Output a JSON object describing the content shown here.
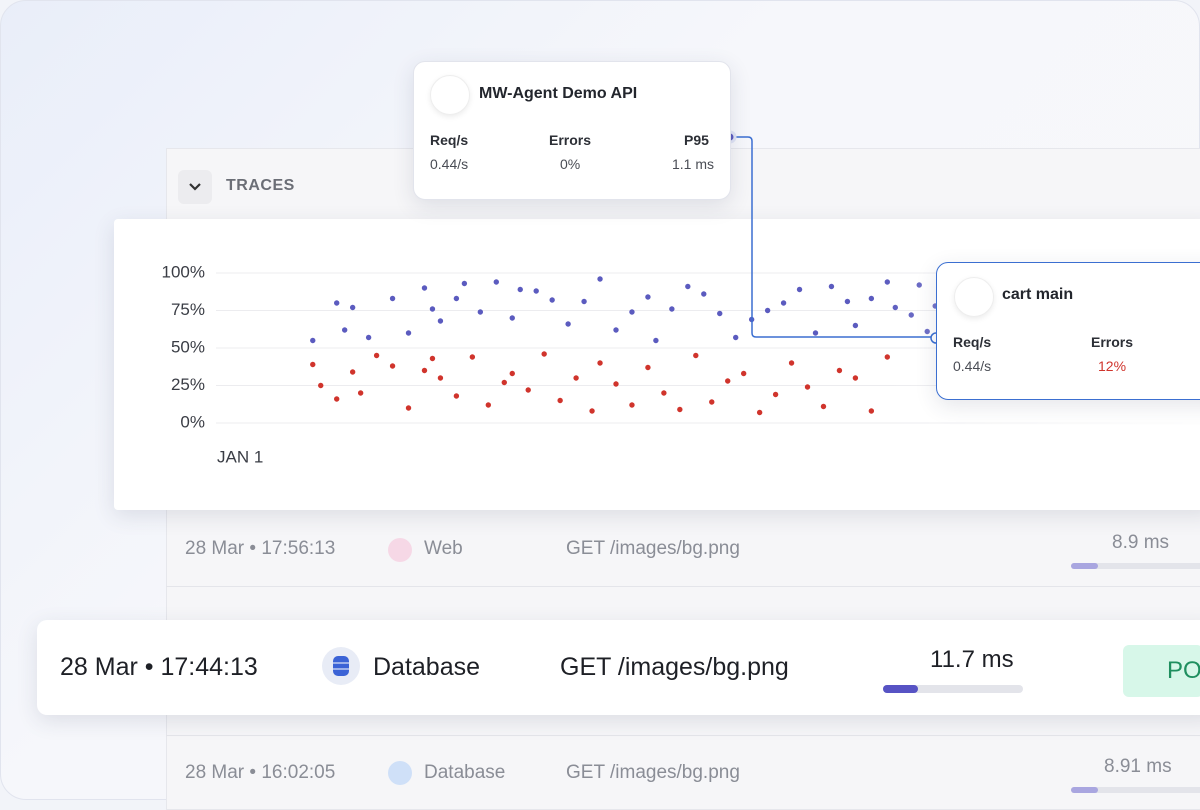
{
  "traces": {
    "title": "TRACES",
    "chart_data": {
      "type": "scatter",
      "xlim": [
        0,
        100
      ],
      "xticks": [
        {
          "value": 0,
          "label": "JAN 1"
        }
      ],
      "ylim": [
        0,
        100
      ],
      "yticks": [
        {
          "value": 0,
          "label": "0%"
        },
        {
          "value": 25,
          "label": "25%"
        },
        {
          "value": 50,
          "label": "50%"
        },
        {
          "value": 75,
          "label": "75%"
        },
        {
          "value": 100,
          "label": "100%"
        }
      ],
      "grid": true,
      "series": [
        {
          "color": "#5b5bbf",
          "x": [
            12,
            15,
            16,
            17,
            19,
            22,
            24,
            26,
            27,
            28,
            30,
            31,
            33,
            35,
            37,
            38,
            40,
            42,
            44,
            46,
            48,
            50,
            52,
            54,
            55,
            57,
            59,
            61,
            63,
            65,
            67,
            69,
            71,
            73,
            75,
            77,
            79,
            80,
            82,
            84,
            85,
            87,
            88,
            89,
            90
          ],
          "values": [
            55,
            80,
            62,
            77,
            57,
            83,
            60,
            90,
            76,
            68,
            83,
            93,
            74,
            94,
            70,
            89,
            88,
            82,
            66,
            81,
            96,
            62,
            74,
            84,
            55,
            76,
            91,
            86,
            73,
            57,
            69,
            75,
            80,
            89,
            60,
            91,
            81,
            65,
            83,
            94,
            77,
            72,
            92,
            61,
            78
          ]
        },
        {
          "color": "#d0342c",
          "x": [
            12,
            13,
            15,
            17,
            18,
            20,
            22,
            24,
            26,
            27,
            28,
            30,
            32,
            34,
            36,
            37,
            39,
            41,
            43,
            45,
            47,
            48,
            50,
            52,
            54,
            56,
            58,
            60,
            62,
            64,
            66,
            68,
            70,
            72,
            74,
            76,
            78,
            80,
            82,
            84
          ],
          "values": [
            39,
            25,
            16,
            34,
            20,
            45,
            38,
            10,
            35,
            43,
            30,
            18,
            44,
            12,
            27,
            33,
            22,
            46,
            15,
            30,
            8,
            40,
            26,
            12,
            37,
            20,
            9,
            45,
            14,
            28,
            33,
            7,
            19,
            40,
            24,
            11,
            35,
            30,
            8,
            44
          ]
        }
      ]
    },
    "rows": [
      {
        "time": "28 Mar • 17:56:13",
        "service": "Web",
        "request": "GET /images/bg.png",
        "duration": "8.9 ms"
      },
      {
        "time": "28 Mar • 16:02:05",
        "service": "Database",
        "request": "GET /images/bg.png",
        "duration": "8.91 ms"
      }
    ],
    "highlight": {
      "time": "28 Mar • 17:44:13",
      "service": "Database",
      "request": "GET /images/bg.png",
      "duration": "11.7 ms",
      "status": "PO"
    }
  },
  "service_card": {
    "name": "MW-Agent Demo API",
    "metrics": [
      {
        "label": "Req/s",
        "value": "0.44/s"
      },
      {
        "label": "Errors",
        "value": "0%"
      },
      {
        "label": "P95",
        "value": "1.1 ms"
      }
    ]
  },
  "cart_card": {
    "name": "cart main",
    "metrics": [
      {
        "label": "Req/s",
        "value": "0.44/s"
      },
      {
        "label": "Errors",
        "value": "12%"
      }
    ]
  }
}
